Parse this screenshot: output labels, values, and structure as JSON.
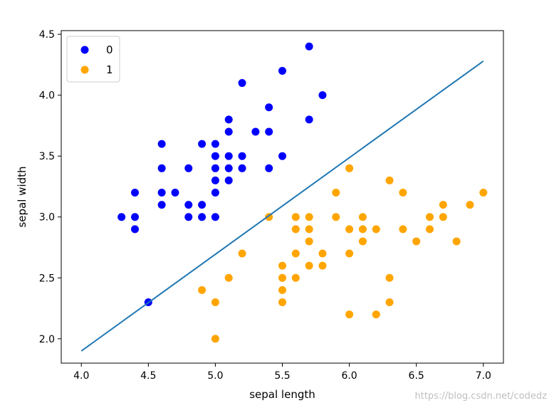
{
  "chart_data": {
    "type": "scatter",
    "xlabel": "sepal length",
    "ylabel": "sepal width",
    "xlim": [
      3.85,
      7.15
    ],
    "ylim": [
      1.8,
      4.53
    ],
    "xticks": [
      4.0,
      4.5,
      5.0,
      5.5,
      6.0,
      6.5,
      7.0
    ],
    "xtick_labels": [
      "4.0",
      "4.5",
      "5.0",
      "5.5",
      "6.0",
      "6.5",
      "7.0"
    ],
    "yticks": [
      2.0,
      2.5,
      3.0,
      3.5,
      4.0,
      4.5
    ],
    "ytick_labels": [
      "2.0",
      "2.5",
      "3.0",
      "3.5",
      "4.0",
      "4.5"
    ],
    "grid": false,
    "legend_position": "top-left",
    "series": [
      {
        "name": "0",
        "color": "#0000ff",
        "points": [
          [
            5.7,
            4.4
          ],
          [
            5.5,
            4.2
          ],
          [
            5.2,
            4.1
          ],
          [
            5.8,
            4.0
          ],
          [
            5.4,
            3.9
          ],
          [
            5.1,
            3.8
          ],
          [
            5.7,
            3.8
          ],
          [
            5.1,
            3.7
          ],
          [
            5.3,
            3.7
          ],
          [
            5.4,
            3.7
          ],
          [
            4.6,
            3.6
          ],
          [
            4.9,
            3.6
          ],
          [
            5.0,
            3.6
          ],
          [
            5.0,
            3.5
          ],
          [
            5.1,
            3.5
          ],
          [
            5.2,
            3.5
          ],
          [
            5.5,
            3.5
          ],
          [
            4.6,
            3.4
          ],
          [
            4.8,
            3.4
          ],
          [
            5.0,
            3.4
          ],
          [
            5.1,
            3.4
          ],
          [
            5.2,
            3.4
          ],
          [
            5.4,
            3.4
          ],
          [
            5.0,
            3.3
          ],
          [
            5.1,
            3.3
          ],
          [
            4.4,
            3.2
          ],
          [
            4.6,
            3.2
          ],
          [
            4.7,
            3.2
          ],
          [
            5.0,
            3.2
          ],
          [
            4.6,
            3.1
          ],
          [
            4.8,
            3.1
          ],
          [
            4.9,
            3.1
          ],
          [
            4.3,
            3.0
          ],
          [
            4.4,
            3.0
          ],
          [
            4.8,
            3.0
          ],
          [
            4.9,
            3.0
          ],
          [
            5.0,
            3.0
          ],
          [
            4.4,
            2.9
          ],
          [
            4.5,
            2.3
          ]
        ]
      },
      {
        "name": "1",
        "color": "#ffa500",
        "points": [
          [
            6.0,
            3.4
          ],
          [
            6.3,
            3.3
          ],
          [
            5.9,
            3.2
          ],
          [
            6.4,
            3.2
          ],
          [
            7.0,
            3.2
          ],
          [
            6.7,
            3.1
          ],
          [
            6.9,
            3.1
          ],
          [
            5.4,
            3.0
          ],
          [
            5.6,
            3.0
          ],
          [
            5.7,
            3.0
          ],
          [
            5.9,
            3.0
          ],
          [
            6.1,
            3.0
          ],
          [
            6.6,
            3.0
          ],
          [
            6.7,
            3.0
          ],
          [
            5.6,
            2.9
          ],
          [
            5.7,
            2.9
          ],
          [
            6.0,
            2.9
          ],
          [
            6.1,
            2.9
          ],
          [
            6.2,
            2.9
          ],
          [
            6.4,
            2.9
          ],
          [
            6.6,
            2.9
          ],
          [
            5.7,
            2.8
          ],
          [
            6.1,
            2.8
          ],
          [
            6.5,
            2.8
          ],
          [
            6.8,
            2.8
          ],
          [
            5.2,
            2.7
          ],
          [
            5.6,
            2.7
          ],
          [
            5.8,
            2.7
          ],
          [
            6.0,
            2.7
          ],
          [
            5.5,
            2.6
          ],
          [
            5.7,
            2.6
          ],
          [
            5.8,
            2.6
          ],
          [
            5.1,
            2.5
          ],
          [
            5.5,
            2.5
          ],
          [
            5.6,
            2.5
          ],
          [
            6.3,
            2.5
          ],
          [
            4.9,
            2.4
          ],
          [
            5.5,
            2.4
          ],
          [
            5.0,
            2.3
          ],
          [
            5.5,
            2.3
          ],
          [
            6.3,
            2.3
          ],
          [
            6.0,
            2.2
          ],
          [
            6.2,
            2.2
          ],
          [
            5.0,
            2.0
          ]
        ]
      }
    ],
    "lines": [
      {
        "name": "decision-boundary",
        "color": "#1f77b4",
        "x": [
          4.0,
          7.0
        ],
        "y": [
          1.9,
          4.28
        ]
      }
    ]
  },
  "watermark": "https://blog.csdn.net/codedz"
}
